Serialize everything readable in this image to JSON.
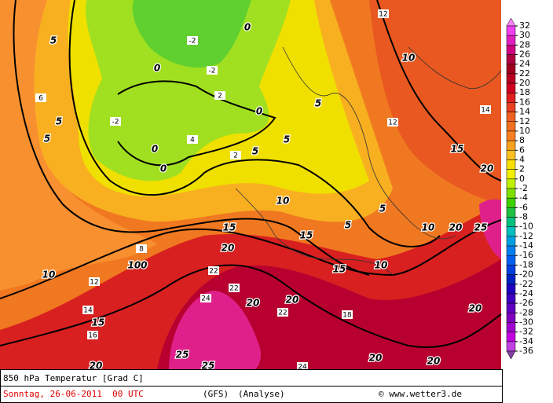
{
  "map": {
    "contour_labels": [
      5,
      5,
      5,
      0,
      0,
      0,
      0,
      0,
      -2,
      -2,
      2,
      2,
      5,
      5,
      5,
      10,
      10,
      10,
      10,
      10,
      15,
      15,
      15,
      15,
      15,
      20,
      20,
      20,
      20,
      20,
      20,
      20,
      20,
      20,
      25,
      25,
      25,
      100,
      6,
      8,
      12,
      14,
      16,
      22,
      22,
      24,
      24,
      12,
      12,
      14,
      18,
      22,
      4,
      -2,
      5,
      5
    ]
  },
  "legend": {
    "ticks": [
      32,
      30,
      28,
      26,
      24,
      22,
      20,
      18,
      16,
      14,
      12,
      10,
      8,
      6,
      4,
      2,
      0,
      -2,
      -4,
      -6,
      -8,
      -10,
      -12,
      -14,
      -16,
      -18,
      -20,
      -22,
      -24,
      -26,
      -28,
      -30,
      -32,
      -34,
      -36
    ],
    "colors": [
      "#ff80ff",
      "#f040f0",
      "#e020c0",
      "#d00080",
      "#b00040",
      "#a00020",
      "#b80020",
      "#d00020",
      "#e02020",
      "#e84020",
      "#f06020",
      "#f07020",
      "#f88020",
      "#f8a020",
      "#f8c020",
      "#f8e000",
      "#f0f000",
      "#c0f000",
      "#80e000",
      "#40d000",
      "#20c040",
      "#00c080",
      "#00c0c0",
      "#00a0e0",
      "#0080f0",
      "#0060f0",
      "#0040e0",
      "#0020c0",
      "#2000c0",
      "#4000c0",
      "#6000c0",
      "#8000c0",
      "#a000d0",
      "#c000e0",
      "#c040e0",
      "#8040a0"
    ]
  },
  "footer": {
    "title": "850 hPa Temperatur [Grad C]",
    "date": "Sonntag, 26-06-2011  00 UTC",
    "model": "(GFS)",
    "run": "(Analyse)",
    "credit": "© www.wetter3.de"
  }
}
